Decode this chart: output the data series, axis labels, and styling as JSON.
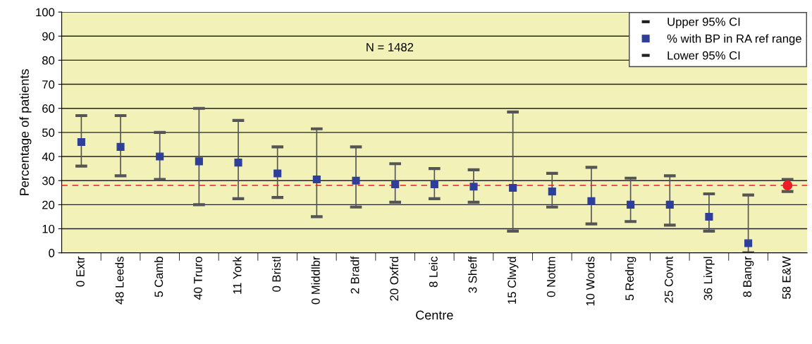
{
  "chart_data": {
    "type": "scatter",
    "xlabel": "Centre",
    "ylabel": "Percentage of patients",
    "categories": [
      "0 Extr",
      "48 Leeds",
      "5 Camb",
      "40 Truro",
      "11 York",
      "0 Bristl",
      "0 Middlbr",
      "2 Bradf",
      "20 Oxfrd",
      "8 Leic",
      "3 Sheff",
      "15 Clwyd",
      "0 Nottm",
      "10 Words",
      "5 Redng",
      "25 Covnt",
      "36 Livrpl",
      "8 Bangr",
      "58 E&W"
    ],
    "series": [
      {
        "name": "Upper 95% CI",
        "color": "#231f20",
        "values": [
          null,
          null,
          null,
          null,
          null,
          null,
          null,
          null,
          null,
          null,
          null,
          null,
          null,
          null,
          null,
          null,
          null,
          null,
          null
        ]
      },
      {
        "name": "% with BP in RA ref range",
        "color": "#2e3f99",
        "marker": "square",
        "values": [
          46,
          44,
          40,
          38,
          37.5,
          33,
          30.5,
          30,
          28.5,
          28.5,
          27.5,
          27,
          25.5,
          21.5,
          20,
          20,
          15,
          4,
          null
        ],
        "errors": [
          [
            36,
            57
          ],
          [
            32,
            57
          ],
          [
            30.5,
            50
          ],
          [
            20,
            60
          ],
          [
            22.5,
            55
          ],
          [
            23,
            44
          ],
          [
            15,
            51.5
          ],
          [
            19,
            44
          ],
          [
            21,
            37
          ],
          [
            22.5,
            35
          ],
          [
            21,
            34.5
          ],
          [
            9,
            58.5
          ],
          [
            19,
            33
          ],
          [
            12,
            35.5
          ],
          [
            13,
            31
          ],
          [
            11.5,
            32
          ],
          [
            9,
            24.5
          ],
          [
            0,
            24
          ],
          null
        ]
      },
      {
        "name": "Lower 95% CI",
        "color": "#231f20",
        "values": [
          null,
          null,
          null,
          null,
          null,
          null,
          null,
          null,
          null,
          null,
          null,
          null,
          null,
          null,
          null,
          null,
          null,
          null,
          null
        ]
      },
      {
        "color": "#ee1c25",
        "marker": "circle",
        "values": [
          null,
          null,
          null,
          null,
          null,
          null,
          null,
          null,
          null,
          null,
          null,
          null,
          null,
          null,
          null,
          null,
          null,
          null,
          28
        ],
        "errors": [
          null,
          null,
          null,
          null,
          null,
          null,
          null,
          null,
          null,
          null,
          null,
          null,
          null,
          null,
          null,
          null,
          null,
          null,
          [
            25.5,
            30.5
          ]
        ]
      }
    ],
    "ref_lines": [
      {
        "axis": "y",
        "value": 28,
        "color": "#ee1c25",
        "line_style": "dashed"
      }
    ],
    "annotations": [
      "N = 1482"
    ],
    "ylim": [
      0,
      100
    ],
    "yticks": [
      0,
      10,
      20,
      30,
      40,
      50,
      60,
      70,
      80,
      90,
      100
    ],
    "grid": "y",
    "legend": "top right"
  }
}
